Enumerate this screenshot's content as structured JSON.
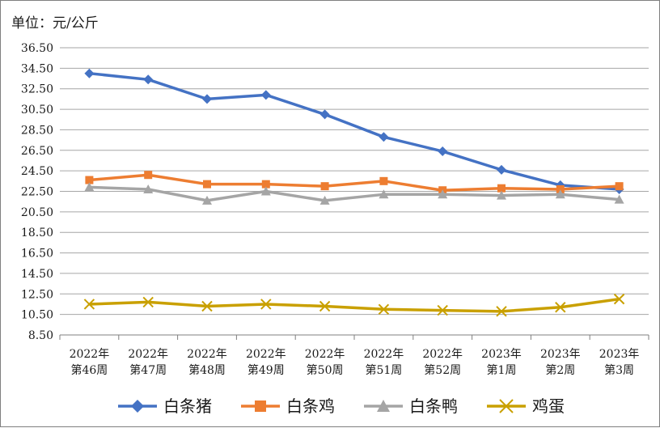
{
  "chart_data": {
    "type": "line",
    "title": "",
    "unit_label": "单位：元/公斤",
    "xlabel": "",
    "ylabel": "",
    "ylim": [
      8.5,
      36.5
    ],
    "y_ticks": [
      "8.50",
      "10.50",
      "12.50",
      "14.50",
      "16.50",
      "18.50",
      "20.50",
      "22.50",
      "24.50",
      "26.50",
      "28.50",
      "30.50",
      "32.50",
      "34.50",
      "36.50"
    ],
    "grid": true,
    "legend_position": "bottom",
    "categories": [
      [
        "2022年",
        "第46周"
      ],
      [
        "2022年",
        "第47周"
      ],
      [
        "2022年",
        "第48周"
      ],
      [
        "2022年",
        "第49周"
      ],
      [
        "2022年",
        "第50周"
      ],
      [
        "2022年",
        "第51周"
      ],
      [
        "2022年",
        "第52周"
      ],
      [
        "2023年",
        "第1周"
      ],
      [
        "2023年",
        "第2周"
      ],
      [
        "2023年",
        "第3周"
      ]
    ],
    "series": [
      {
        "name": "白条猪",
        "color": "#4472c4",
        "marker": "diamond",
        "values": [
          34.0,
          33.4,
          31.5,
          31.9,
          30.0,
          27.8,
          26.4,
          24.6,
          23.1,
          22.7
        ]
      },
      {
        "name": "白条鸡",
        "color": "#ed7d31",
        "marker": "square",
        "values": [
          23.6,
          24.1,
          23.2,
          23.2,
          23.0,
          23.5,
          22.6,
          22.8,
          22.7,
          23.0
        ]
      },
      {
        "name": "白条鸭",
        "color": "#a5a5a5",
        "marker": "triangle",
        "values": [
          22.9,
          22.7,
          21.6,
          22.5,
          21.6,
          22.2,
          22.2,
          22.1,
          22.2,
          21.7
        ]
      },
      {
        "name": "鸡蛋",
        "color": "#c9a000",
        "marker": "x",
        "values": [
          11.5,
          11.7,
          11.3,
          11.5,
          11.3,
          11.0,
          10.9,
          10.8,
          11.2,
          12.0
        ]
      }
    ]
  }
}
